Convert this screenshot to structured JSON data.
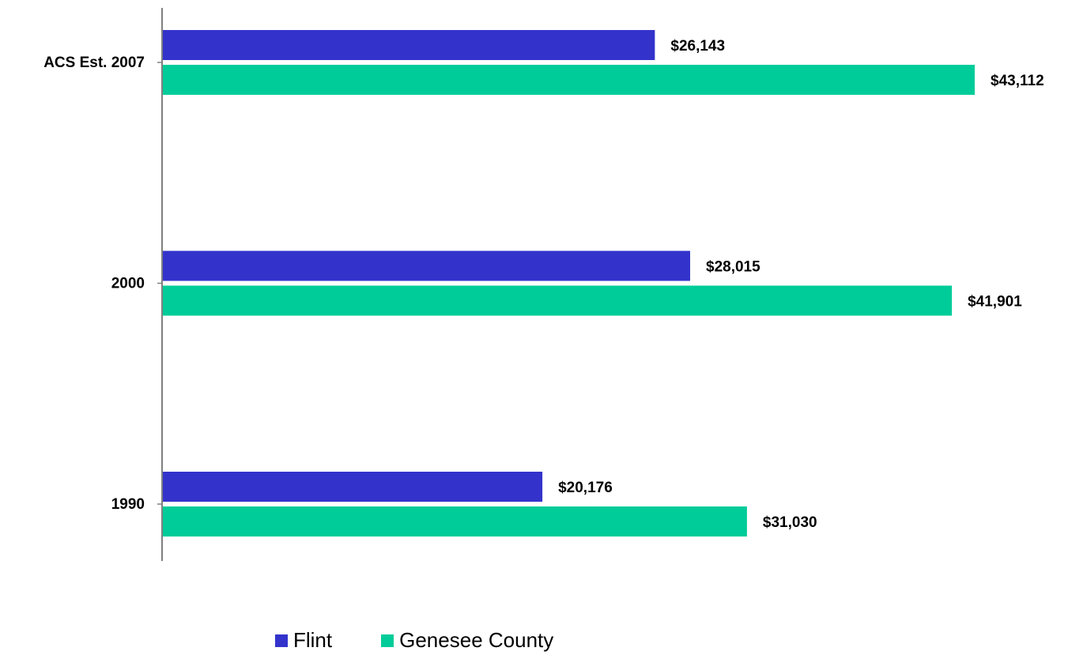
{
  "chart_data": {
    "type": "bar",
    "orientation": "horizontal",
    "categories": [
      "ACS Est. 2007",
      "2000",
      "1990"
    ],
    "series": [
      {
        "name": "Flint",
        "color": "#3333cc",
        "values": [
          26143,
          28015,
          20176
        ],
        "labels": [
          "$26,143",
          "$28,015",
          "$20,176"
        ]
      },
      {
        "name": "Genesee County",
        "color": "#00cc99",
        "values": [
          43112,
          41901,
          31030
        ],
        "labels": [
          "$43,112",
          "$41,901",
          "$31,030"
        ]
      }
    ],
    "xlim": [
      0,
      50000
    ],
    "grid": false,
    "legend_position": "bottom",
    "title": "",
    "xlabel": "",
    "ylabel": ""
  }
}
